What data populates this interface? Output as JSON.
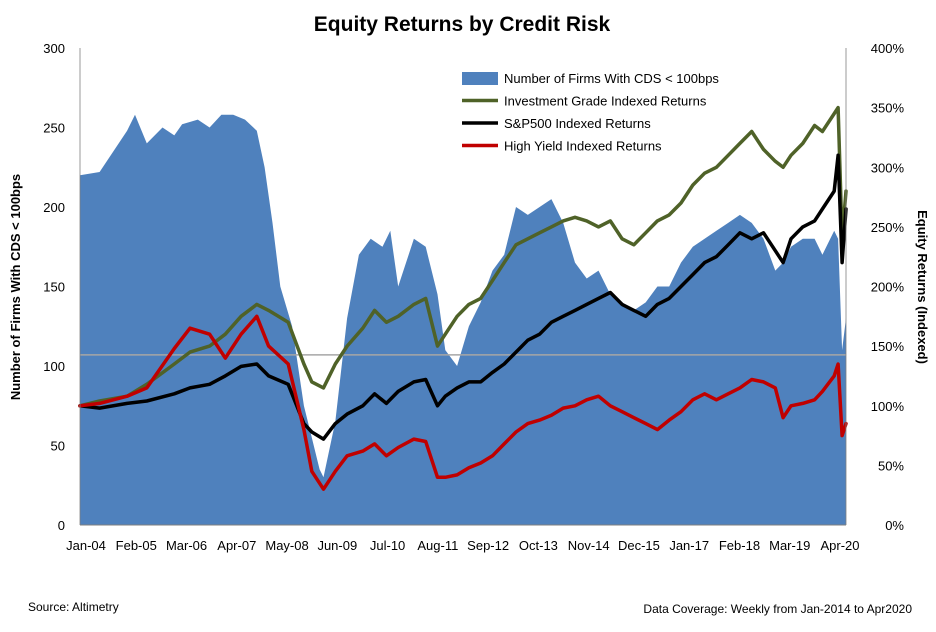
{
  "chart_data": {
    "type": "area+line",
    "title": "Equity Returns by Credit Risk",
    "ylabel_left": "Number of Firms With CDS < 100bps",
    "ylabel_right": "Equity Returns (Indexed)",
    "ylim_left": [
      0,
      300
    ],
    "ylim_right": [
      0,
      400
    ],
    "yticks_left": [
      "0",
      "50",
      "100",
      "150",
      "200",
      "250",
      "300"
    ],
    "yticks_right": [
      "0%",
      "50%",
      "100%",
      "150%",
      "200%",
      "250%",
      "300%",
      "350%",
      "400%"
    ],
    "x_tick_labels": [
      "Jan-04",
      "Feb-05",
      "Mar-06",
      "Apr-07",
      "May-08",
      "Jun-09",
      "Jul-10",
      "Aug-11",
      "Sep-12",
      "Oct-13",
      "Nov-14",
      "Dec-15",
      "Jan-17",
      "Feb-18",
      "Mar-19",
      "Apr-20"
    ],
    "legend_position": "top-right",
    "grid": false,
    "reference_line_left_value": 107,
    "source": "Source: Altimetry",
    "coverage": "Data Coverage: Weekly from Jan-2014 to Apr2020",
    "series": [
      {
        "name": "Number of Firms With CDS < 100bps",
        "kind": "area",
        "axis": "left",
        "color": "#4f81bd",
        "x": [
          "2004-01",
          "2004-06",
          "2005-01",
          "2005-03",
          "2005-06",
          "2005-10",
          "2006-01",
          "2006-03",
          "2006-07",
          "2006-10",
          "2007-01",
          "2007-04",
          "2007-07",
          "2007-10",
          "2007-12",
          "2008-02",
          "2008-04",
          "2008-07",
          "2008-10",
          "2008-12",
          "2009-02",
          "2009-03",
          "2009-06",
          "2009-09",
          "2009-12",
          "2010-03",
          "2010-06",
          "2010-08",
          "2010-10",
          "2011-02",
          "2011-05",
          "2011-08",
          "2011-10",
          "2012-01",
          "2012-04",
          "2012-07",
          "2012-10",
          "2013-01",
          "2013-04",
          "2013-07",
          "2013-10",
          "2014-01",
          "2014-04",
          "2014-07",
          "2014-10",
          "2015-01",
          "2015-04",
          "2015-07",
          "2015-10",
          "2016-01",
          "2016-04",
          "2016-07",
          "2016-10",
          "2017-01",
          "2017-04",
          "2017-07",
          "2017-10",
          "2018-01",
          "2018-04",
          "2018-07",
          "2018-10",
          "2018-12",
          "2019-02",
          "2019-05",
          "2019-08",
          "2019-10",
          "2020-01",
          "2020-02",
          "2020-03",
          "2020-04"
        ],
        "values": [
          220,
          222,
          248,
          258,
          240,
          250,
          245,
          252,
          255,
          250,
          258,
          258,
          255,
          248,
          225,
          190,
          150,
          125,
          75,
          55,
          35,
          30,
          65,
          130,
          170,
          180,
          175,
          185,
          150,
          180,
          175,
          145,
          110,
          100,
          125,
          140,
          160,
          170,
          200,
          195,
          200,
          205,
          190,
          165,
          155,
          160,
          145,
          140,
          135,
          140,
          150,
          150,
          165,
          175,
          180,
          185,
          190,
          195,
          190,
          180,
          160,
          165,
          175,
          180,
          180,
          170,
          185,
          180,
          110,
          130
        ]
      },
      {
        "name": "Investment Grade Indexed Returns",
        "kind": "line",
        "axis": "right",
        "color": "#4f6228",
        "x": [
          "2004-01",
          "2004-06",
          "2005-01",
          "2005-06",
          "2006-01",
          "2006-05",
          "2006-10",
          "2007-02",
          "2007-06",
          "2007-10",
          "2008-01",
          "2008-06",
          "2008-10",
          "2008-12",
          "2009-03",
          "2009-06",
          "2009-09",
          "2010-01",
          "2010-04",
          "2010-07",
          "2010-10",
          "2011-02",
          "2011-05",
          "2011-08",
          "2011-10",
          "2012-01",
          "2012-04",
          "2012-07",
          "2012-10",
          "2013-01",
          "2013-04",
          "2013-07",
          "2013-10",
          "2014-01",
          "2014-04",
          "2014-07",
          "2014-10",
          "2015-01",
          "2015-04",
          "2015-07",
          "2015-10",
          "2016-01",
          "2016-04",
          "2016-07",
          "2016-10",
          "2017-01",
          "2017-04",
          "2017-07",
          "2017-10",
          "2018-01",
          "2018-04",
          "2018-07",
          "2018-10",
          "2018-12",
          "2019-02",
          "2019-05",
          "2019-08",
          "2019-10",
          "2020-01",
          "2020-02",
          "2020-03",
          "2020-04"
        ],
        "values": [
          100,
          104,
          108,
          118,
          135,
          145,
          150,
          160,
          175,
          185,
          180,
          170,
          135,
          120,
          115,
          135,
          150,
          165,
          180,
          170,
          175,
          185,
          190,
          150,
          160,
          175,
          185,
          190,
          205,
          220,
          235,
          240,
          245,
          250,
          255,
          258,
          255,
          250,
          255,
          240,
          235,
          245,
          255,
          260,
          270,
          285,
          295,
          300,
          310,
          320,
          330,
          315,
          305,
          300,
          310,
          320,
          335,
          330,
          345,
          350,
          240,
          280
        ]
      },
      {
        "name": "S&P500 Indexed Returns",
        "kind": "line",
        "axis": "right",
        "color": "#000000",
        "x": [
          "2004-01",
          "2004-06",
          "2005-01",
          "2005-06",
          "2006-01",
          "2006-05",
          "2006-10",
          "2007-02",
          "2007-06",
          "2007-10",
          "2008-01",
          "2008-06",
          "2008-10",
          "2008-12",
          "2009-03",
          "2009-06",
          "2009-09",
          "2010-01",
          "2010-04",
          "2010-07",
          "2010-10",
          "2011-02",
          "2011-05",
          "2011-08",
          "2011-10",
          "2012-01",
          "2012-04",
          "2012-07",
          "2012-10",
          "2013-01",
          "2013-04",
          "2013-07",
          "2013-10",
          "2014-01",
          "2014-04",
          "2014-07",
          "2014-10",
          "2015-01",
          "2015-04",
          "2015-07",
          "2015-10",
          "2016-01",
          "2016-04",
          "2016-07",
          "2016-10",
          "2017-01",
          "2017-04",
          "2017-07",
          "2017-10",
          "2018-01",
          "2018-04",
          "2018-07",
          "2018-10",
          "2018-12",
          "2019-02",
          "2019-05",
          "2019-08",
          "2019-10",
          "2020-01",
          "2020-02",
          "2020-03",
          "2020-04"
        ],
        "values": [
          100,
          98,
          102,
          104,
          110,
          115,
          118,
          125,
          133,
          135,
          125,
          118,
          85,
          78,
          72,
          85,
          93,
          100,
          110,
          102,
          112,
          120,
          122,
          100,
          108,
          115,
          120,
          120,
          128,
          135,
          145,
          155,
          160,
          170,
          175,
          180,
          185,
          190,
          195,
          185,
          180,
          175,
          185,
          190,
          200,
          210,
          220,
          225,
          235,
          245,
          240,
          245,
          230,
          220,
          240,
          250,
          255,
          265,
          280,
          310,
          220,
          265
        ]
      },
      {
        "name": "High Yield Indexed Returns",
        "kind": "line",
        "axis": "right",
        "color": "#c00000",
        "x": [
          "2004-01",
          "2004-06",
          "2005-01",
          "2005-06",
          "2006-01",
          "2006-05",
          "2006-10",
          "2007-02",
          "2007-06",
          "2007-10",
          "2008-01",
          "2008-06",
          "2008-10",
          "2008-12",
          "2009-03",
          "2009-06",
          "2009-09",
          "2010-01",
          "2010-04",
          "2010-07",
          "2010-10",
          "2011-02",
          "2011-05",
          "2011-08",
          "2011-10",
          "2012-01",
          "2012-04",
          "2012-07",
          "2012-10",
          "2013-01",
          "2013-04",
          "2013-07",
          "2013-10",
          "2014-01",
          "2014-04",
          "2014-07",
          "2014-10",
          "2015-01",
          "2015-04",
          "2015-07",
          "2015-10",
          "2016-01",
          "2016-04",
          "2016-07",
          "2016-10",
          "2017-01",
          "2017-04",
          "2017-07",
          "2017-10",
          "2018-01",
          "2018-04",
          "2018-07",
          "2018-10",
          "2018-12",
          "2019-02",
          "2019-05",
          "2019-08",
          "2019-10",
          "2020-01",
          "2020-02",
          "2020-03",
          "2020-04"
        ],
        "values": [
          100,
          102,
          108,
          115,
          148,
          165,
          160,
          140,
          160,
          175,
          150,
          135,
          80,
          45,
          30,
          45,
          58,
          62,
          68,
          58,
          65,
          72,
          70,
          40,
          40,
          42,
          48,
          52,
          58,
          68,
          78,
          85,
          88,
          92,
          98,
          100,
          105,
          108,
          100,
          95,
          90,
          85,
          80,
          88,
          95,
          105,
          110,
          105,
          110,
          115,
          122,
          120,
          115,
          90,
          100,
          102,
          105,
          112,
          125,
          135,
          75,
          85
        ]
      }
    ]
  }
}
